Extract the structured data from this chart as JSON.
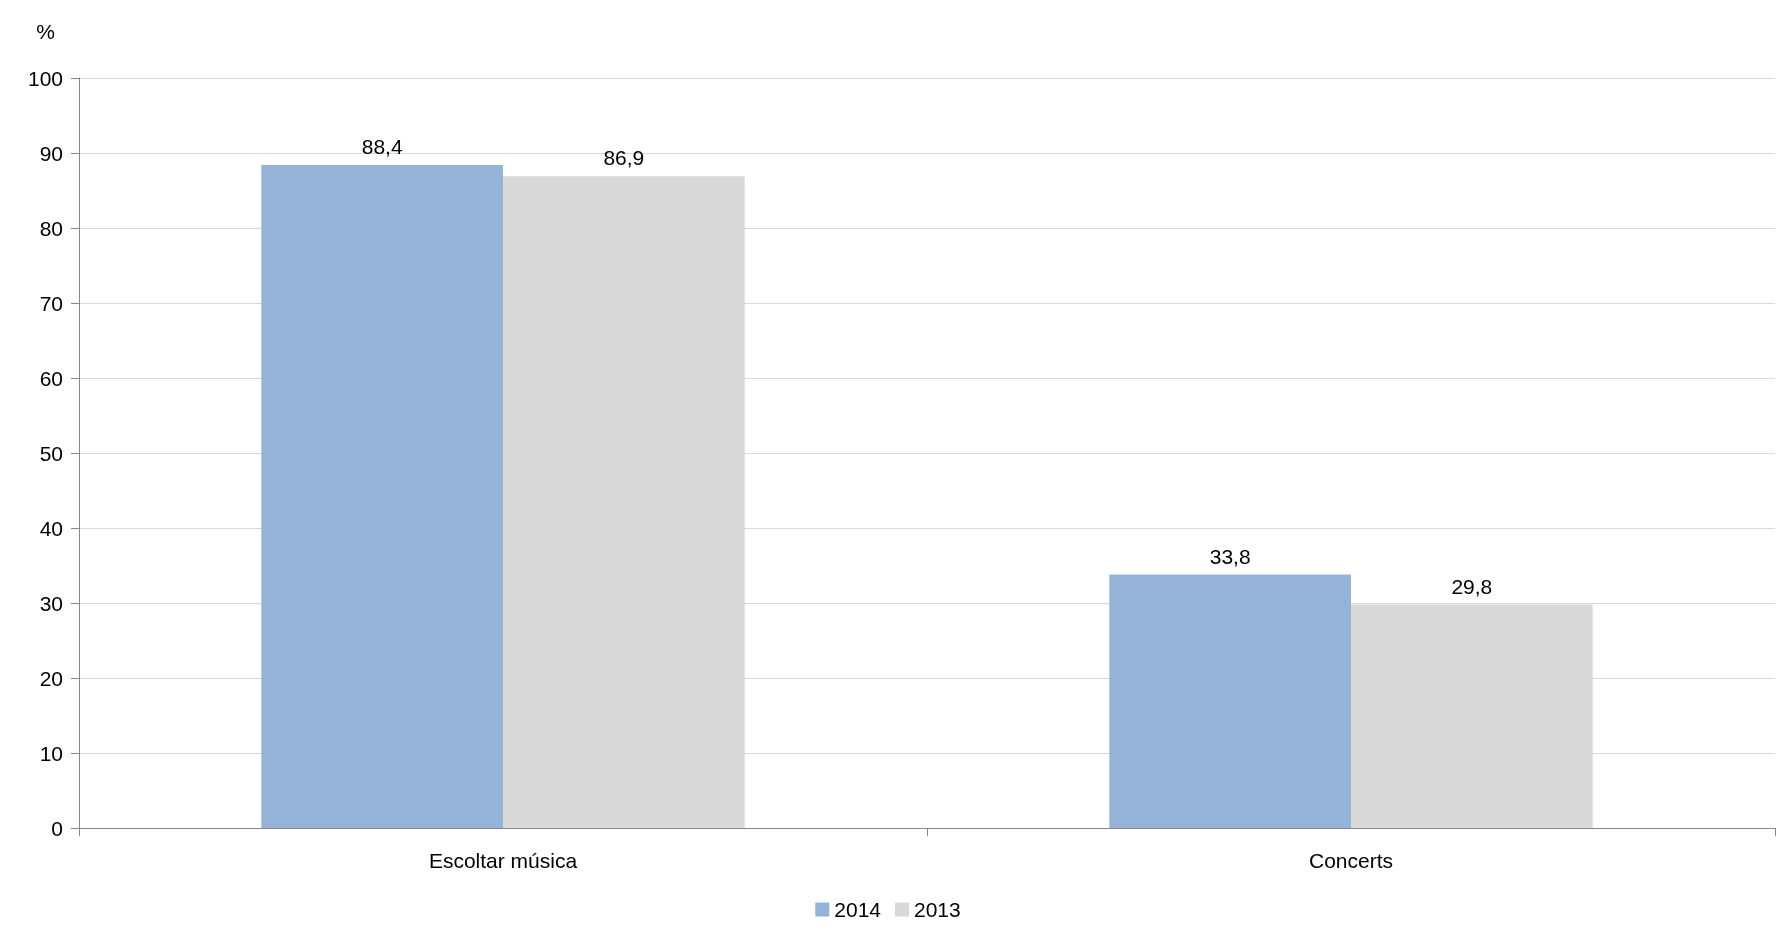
{
  "chart_data": {
    "type": "bar",
    "ylabel": "%",
    "categories": [
      "Escoltar música",
      "Concerts"
    ],
    "series": [
      {
        "name": "2014",
        "color": "#95b3d7",
        "values": [
          88.4,
          33.8
        ],
        "value_labels": [
          "88,4",
          "33,8"
        ]
      },
      {
        "name": "2013",
        "color": "#d9d9d9",
        "values": [
          86.9,
          29.8
        ],
        "value_labels": [
          "86,9",
          "29,8"
        ]
      }
    ],
    "ylim": [
      0,
      100
    ],
    "yticks": [
      0,
      10,
      20,
      30,
      40,
      50,
      60,
      70,
      80,
      90,
      100
    ],
    "grid": "y",
    "legend": "bottom"
  }
}
